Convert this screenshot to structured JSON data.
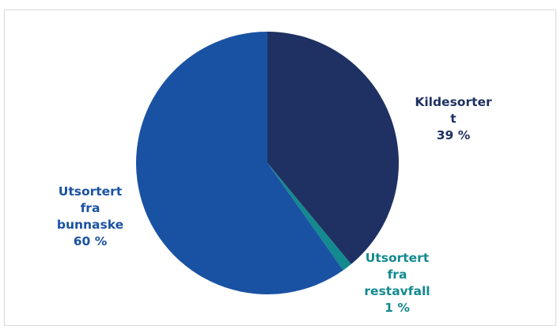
{
  "chart_data": {
    "type": "pie",
    "title": "",
    "slices": [
      {
        "label": "Kildesortert",
        "display_lines": [
          "Kildesorter",
          "t",
          "39 %"
        ],
        "value": 39,
        "color": "#1f3162"
      },
      {
        "label": "Utsortert fra restavfall",
        "display_lines": [
          "Utsortert",
          "fra",
          "restavfall",
          "1 %"
        ],
        "value": 1.2,
        "color": "#138a8f"
      },
      {
        "label": "Utsortert fra bunnaske",
        "display_lines": [
          "Utsortert",
          "fra",
          "bunnaske",
          "60 %"
        ],
        "value": 59.8,
        "color": "#1a52a3"
      }
    ],
    "start_angle_deg": 0,
    "direction": "clockwise",
    "legend": "none"
  }
}
